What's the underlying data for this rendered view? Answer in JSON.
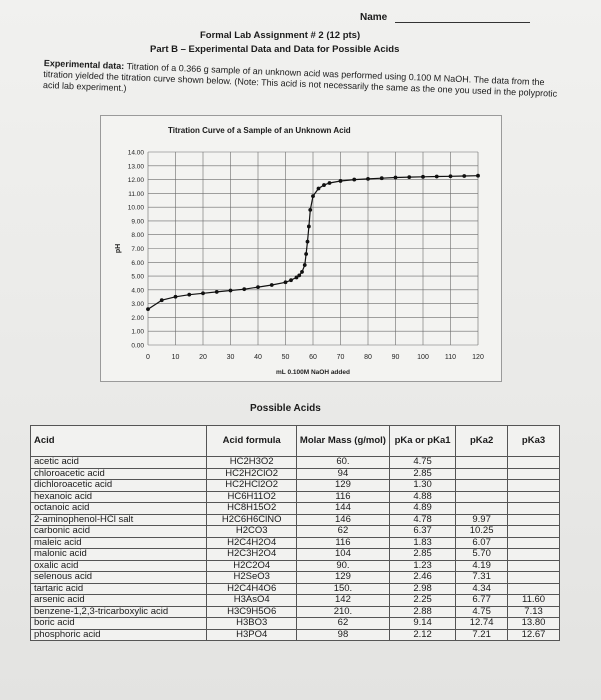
{
  "header": {
    "name_label": "Name",
    "title_line1": "Formal Lab Assignment # 2 (12 pts)",
    "title_line2": "Part B – Experimental Data and Data for Possible Acids"
  },
  "intro": {
    "label": "Experimental data:",
    "text": "Titration of a 0.366 g sample of an unknown acid was performed using 0.100 M NaOH. The data from the titration yielded the titration curve shown below. (Note: This acid is not necessarily the same as the one you used in the polyprotic acid lab experiment.)"
  },
  "chart_data": {
    "type": "line",
    "title": "Titration Curve of a Sample of an Unknown Acid",
    "xlabel": "mL 0.100M NaOH added",
    "ylabel": "pH",
    "xlim": [
      0,
      120
    ],
    "ylim": [
      0,
      14
    ],
    "xticks": [
      "0",
      "10",
      "20",
      "30",
      "40",
      "50",
      "60",
      "70",
      "80",
      "90",
      "100",
      "110",
      "120"
    ],
    "yticks": [
      "0.00",
      "1.00",
      "2.00",
      "3.00",
      "4.00",
      "5.00",
      "6.00",
      "7.00",
      "8.00",
      "9.00",
      "10.00",
      "11.00",
      "12.00",
      "13.00",
      "14.00"
    ],
    "grid": true,
    "series": [
      {
        "x": [
          0,
          5,
          10,
          15,
          20,
          25,
          30,
          35,
          40,
          45,
          50,
          52,
          54,
          55,
          56,
          57,
          57.5,
          58,
          58.5,
          59,
          60,
          62,
          64,
          66,
          70,
          75,
          80,
          85,
          90,
          95,
          100,
          105,
          110,
          115,
          120
        ],
        "y": [
          2.6,
          3.25,
          3.5,
          3.65,
          3.75,
          3.85,
          3.95,
          4.05,
          4.2,
          4.35,
          4.55,
          4.7,
          4.9,
          5.05,
          5.3,
          5.8,
          6.6,
          7.5,
          8.6,
          9.8,
          10.8,
          11.35,
          11.6,
          11.75,
          11.9,
          12.0,
          12.05,
          12.1,
          12.15,
          12.18,
          12.2,
          12.22,
          12.24,
          12.26,
          12.28
        ]
      }
    ]
  },
  "table": {
    "title": "Possible Acids",
    "headers": [
      "Acid",
      "Acid formula",
      "Molar Mass (g/mol)",
      "pKa or pKa1",
      "pKa2",
      "pKa3"
    ],
    "rows": [
      [
        "acetic acid",
        "HC2H3O2",
        "60.",
        "4.75",
        "",
        ""
      ],
      [
        "chloroacetic acid",
        "HC2H2ClO2",
        "94",
        "2.85",
        "",
        ""
      ],
      [
        "dichloroacetic acid",
        "HC2HCl2O2",
        "129",
        "1.30",
        "",
        ""
      ],
      [
        "hexanoic acid",
        "HC6H11O2",
        "116",
        "4.88",
        "",
        ""
      ],
      [
        "octanoic acid",
        "HC8H15O2",
        "144",
        "4.89",
        "",
        ""
      ],
      [
        "2-aminophenol-HCl salt",
        "H2C6H6ClNO",
        "146",
        "4.78",
        "9.97",
        ""
      ],
      [
        "carbonic acid",
        "H2CO3",
        "62",
        "6.37",
        "10.25",
        ""
      ],
      [
        "maleic acid",
        "H2C4H2O4",
        "116",
        "1.83",
        "6.07",
        ""
      ],
      [
        "malonic acid",
        "H2C3H2O4",
        "104",
        "2.85",
        "5.70",
        ""
      ],
      [
        "oxalic acid",
        "H2C2O4",
        "90.",
        "1.23",
        "4.19",
        ""
      ],
      [
        "selenous acid",
        "H2SeO3",
        "129",
        "2.46",
        "7.31",
        ""
      ],
      [
        "tartaric acid",
        "H2C4H4O6",
        "150.",
        "2.98",
        "4.34",
        ""
      ],
      [
        "arsenic acid",
        "H3AsO4",
        "142",
        "2.25",
        "6.77",
        "11.60"
      ],
      [
        "benzene-1,2,3-tricarboxylic acid",
        "H3C9H5O6",
        "210.",
        "2.88",
        "4.75",
        "7.13"
      ],
      [
        "boric acid",
        "H3BO3",
        "62",
        "9.14",
        "12.74",
        "13.80"
      ],
      [
        "phosphoric acid",
        "H3PO4",
        "98",
        "2.12",
        "7.21",
        "12.67"
      ]
    ]
  }
}
